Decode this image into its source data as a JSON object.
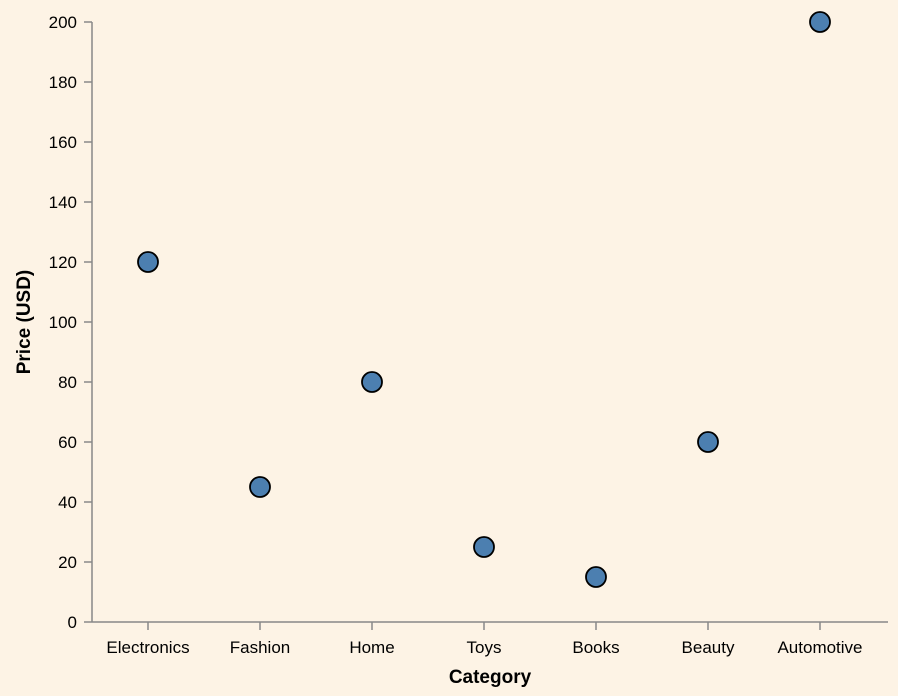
{
  "colors": {
    "background": "#fdf3e5",
    "point_fill": "#4c7fb0",
    "point_stroke": "#000000",
    "axis": "#888888"
  },
  "chart_data": {
    "type": "scatter",
    "xlabel": "Category",
    "ylabel": "Price (USD)",
    "categories": [
      "Electronics",
      "Fashion",
      "Home",
      "Toys",
      "Books",
      "Beauty",
      "Automotive"
    ],
    "values": [
      120,
      45,
      80,
      25,
      15,
      60,
      200
    ],
    "ylim": [
      0,
      200
    ],
    "yticks": [
      0,
      20,
      40,
      60,
      80,
      100,
      120,
      140,
      160,
      180,
      200
    ],
    "grid": false
  }
}
